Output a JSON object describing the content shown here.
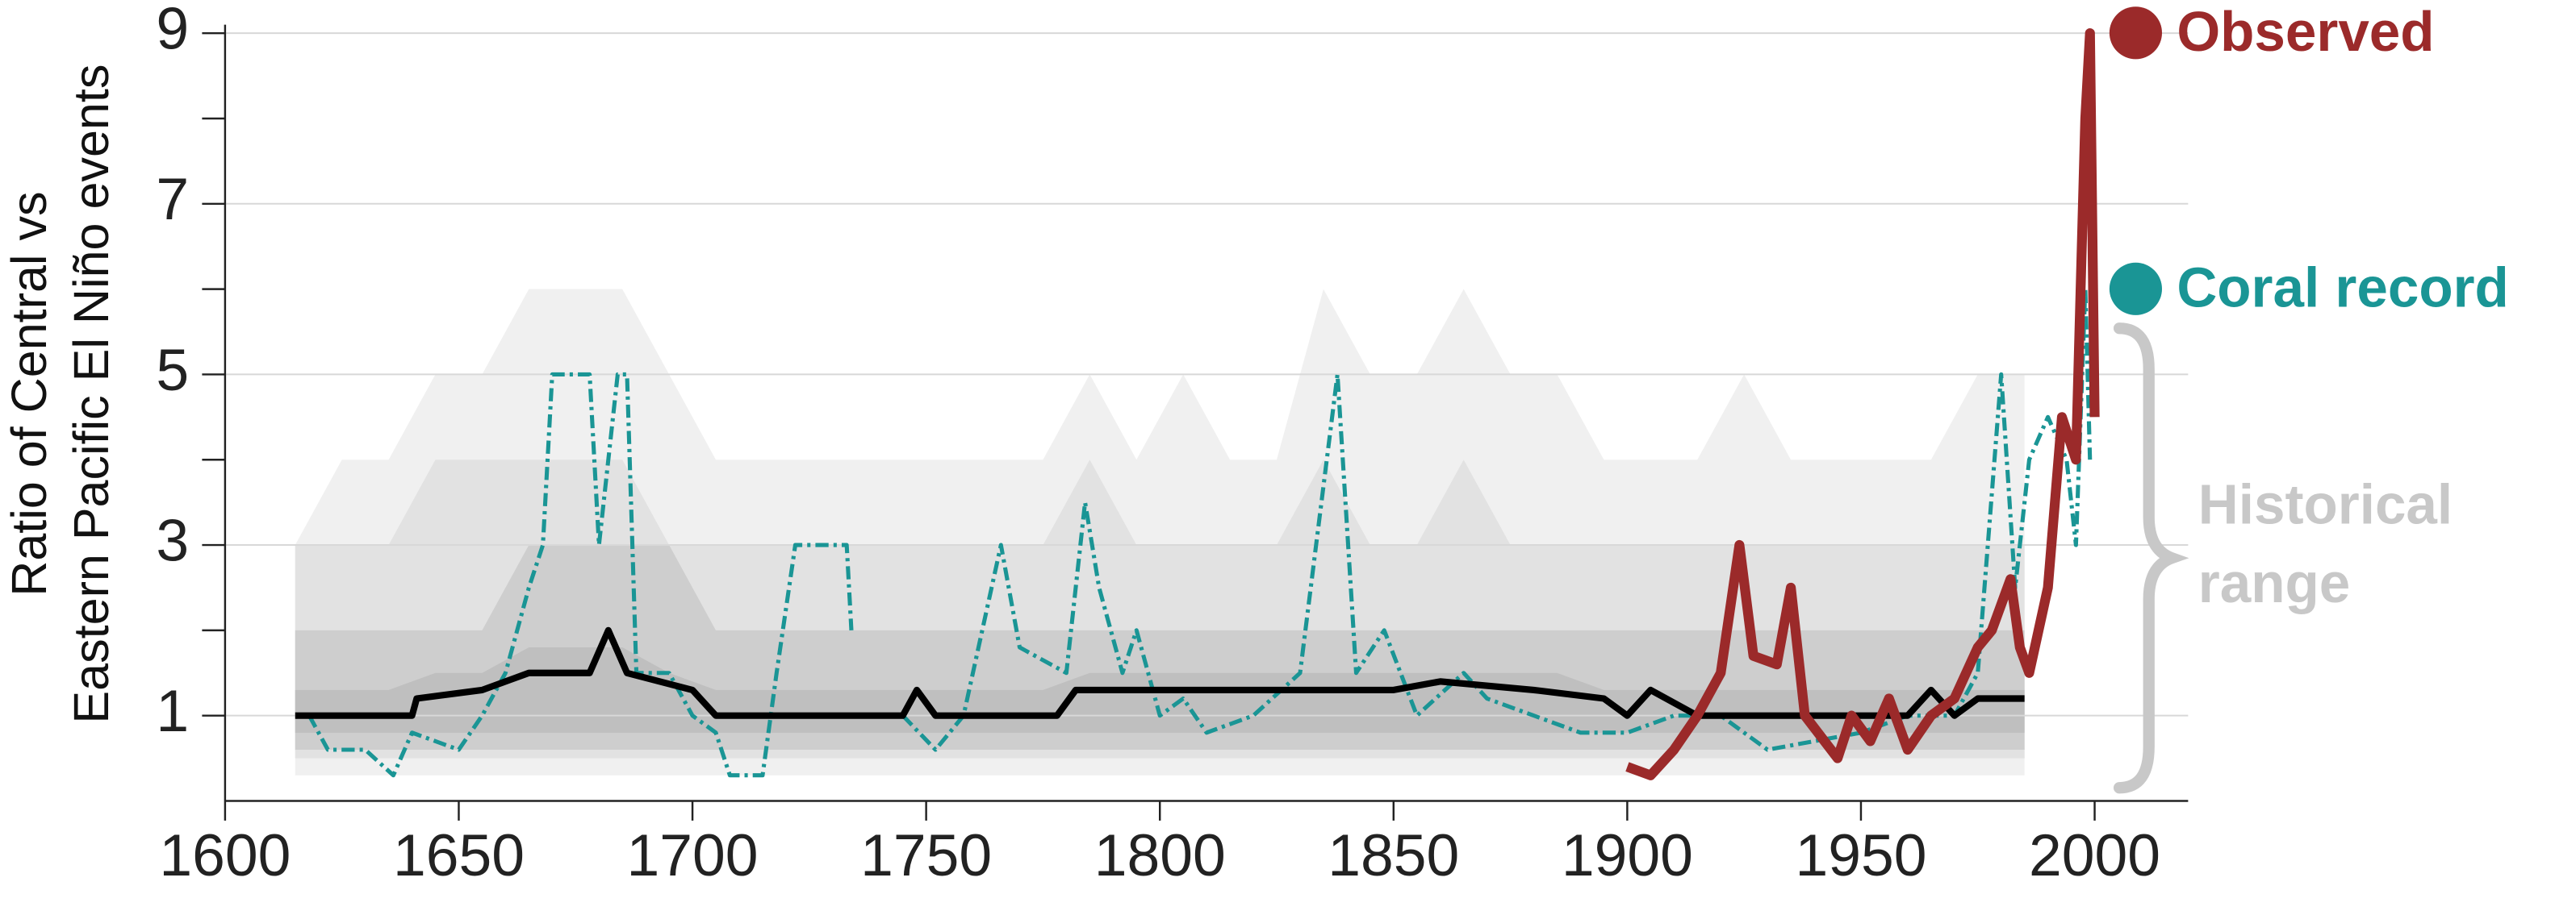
{
  "chart_data": {
    "type": "line",
    "ylabel": [
      "Ratio of Central vs",
      "Eastern Pacific El Niño events"
    ],
    "annotation": [
      "Historical",
      "range"
    ],
    "xlim": [
      1600,
      2020
    ],
    "xticks": [
      1600,
      1650,
      1700,
      1750,
      1800,
      1850,
      1900,
      1950,
      2000
    ],
    "ylim": [
      0,
      9.1
    ],
    "yticks": [
      1,
      3,
      5,
      7,
      9
    ],
    "yminorticks": [
      2,
      4,
      6,
      8
    ],
    "grid": true,
    "bands": {
      "x": [
        1615,
        1625,
        1635,
        1645,
        1655,
        1665,
        1675,
        1685,
        1695,
        1705,
        1715,
        1725,
        1735,
        1745,
        1755,
        1765,
        1775,
        1785,
        1795,
        1805,
        1815,
        1825,
        1835,
        1845,
        1855,
        1865,
        1875,
        1885,
        1895,
        1905,
        1915,
        1925,
        1935,
        1945,
        1955,
        1965,
        1975,
        1985
      ],
      "levels": [
        {
          "color": "#f0f0f0",
          "upper": [
            3,
            4,
            4,
            5,
            5,
            6,
            6,
            6,
            5,
            4,
            4,
            4,
            4,
            4,
            4,
            4,
            4,
            5,
            4,
            5,
            4,
            4,
            6,
            5,
            5,
            6,
            5,
            5,
            4,
            4,
            4,
            5,
            4,
            4,
            4,
            4,
            5,
            5
          ],
          "lower": [
            0.3,
            0.3,
            0.3,
            0.3,
            0.3,
            0.3,
            0.3,
            0.3,
            0.3,
            0.3,
            0.3,
            0.3,
            0.3,
            0.3,
            0.3,
            0.3,
            0.3,
            0.3,
            0.3,
            0.3,
            0.3,
            0.3,
            0.3,
            0.3,
            0.3,
            0.3,
            0.3,
            0.3,
            0.3,
            0.3,
            0.3,
            0.3,
            0.3,
            0.3,
            0.3,
            0.3,
            0.3,
            0.3
          ]
        },
        {
          "color": "#e2e2e2",
          "upper": [
            3,
            3,
            3,
            4,
            4,
            4,
            4,
            4,
            3,
            3,
            3,
            3,
            3,
            3,
            3,
            3,
            3,
            4,
            3,
            3,
            3,
            3,
            4,
            3,
            3,
            4,
            3,
            3,
            3,
            3,
            3,
            3,
            3,
            3,
            3,
            3,
            3,
            3
          ],
          "lower": [
            0.5,
            0.5,
            0.5,
            0.5,
            0.5,
            0.5,
            0.5,
            0.5,
            0.5,
            0.5,
            0.5,
            0.5,
            0.5,
            0.5,
            0.5,
            0.5,
            0.5,
            0.5,
            0.5,
            0.5,
            0.5,
            0.5,
            0.5,
            0.5,
            0.5,
            0.5,
            0.5,
            0.5,
            0.5,
            0.5,
            0.5,
            0.5,
            0.5,
            0.5,
            0.5,
            0.5,
            0.5,
            0.5
          ]
        },
        {
          "color": "#cecece",
          "upper": [
            2,
            2,
            2,
            2,
            2,
            3,
            3,
            3,
            3,
            2,
            2,
            2,
            2,
            2,
            2,
            2,
            2,
            2,
            2,
            2,
            2,
            2,
            2,
            2,
            2,
            2,
            2,
            2,
            2,
            2,
            2,
            2,
            2,
            2,
            2,
            2,
            2,
            2
          ],
          "lower": [
            0.6,
            0.6,
            0.6,
            0.6,
            0.6,
            0.6,
            0.6,
            0.6,
            0.6,
            0.6,
            0.6,
            0.6,
            0.6,
            0.6,
            0.6,
            0.6,
            0.6,
            0.6,
            0.6,
            0.6,
            0.6,
            0.6,
            0.6,
            0.6,
            0.6,
            0.6,
            0.6,
            0.6,
            0.6,
            0.6,
            0.6,
            0.6,
            0.6,
            0.6,
            0.6,
            0.6,
            0.6,
            0.6
          ]
        },
        {
          "color": "#bfbfbf",
          "upper": [
            1.3,
            1.3,
            1.3,
            1.5,
            1.5,
            1.8,
            1.8,
            1.8,
            1.5,
            1.3,
            1.3,
            1.3,
            1.3,
            1.3,
            1.3,
            1.3,
            1.3,
            1.5,
            1.5,
            1.5,
            1.5,
            1.5,
            1.5,
            1.5,
            1.5,
            1.5,
            1.5,
            1.5,
            1.3,
            1.3,
            1.3,
            1.3,
            1.3,
            1.3,
            1.3,
            1.3,
            1.3,
            1.3
          ],
          "lower": [
            0.8,
            0.8,
            0.8,
            0.8,
            0.8,
            0.8,
            0.8,
            0.8,
            0.8,
            0.8,
            0.8,
            0.8,
            0.8,
            0.8,
            0.8,
            0.8,
            0.8,
            0.8,
            0.8,
            0.8,
            0.8,
            0.8,
            0.8,
            0.8,
            0.8,
            0.8,
            0.8,
            0.8,
            0.8,
            0.8,
            0.8,
            0.8,
            0.8,
            0.8,
            0.8,
            0.8,
            0.8,
            0.8
          ]
        }
      ]
    },
    "series": [
      {
        "color": "#000000",
        "width": 4,
        "dash": "none",
        "x": [
          1615,
          1640,
          1641,
          1655,
          1665,
          1678,
          1682,
          1686,
          1700,
          1705,
          1745,
          1748,
          1752,
          1778,
          1782,
          1850,
          1860,
          1880,
          1895,
          1900,
          1905,
          1915,
          1960,
          1965,
          1970,
          1975,
          1985
        ],
        "values": [
          1.0,
          1.0,
          1.2,
          1.3,
          1.5,
          1.5,
          2.0,
          1.5,
          1.3,
          1.0,
          1.0,
          1.3,
          1.0,
          1.0,
          1.3,
          1.3,
          1.4,
          1.3,
          1.2,
          1.0,
          1.3,
          1.0,
          1.0,
          1.3,
          1.0,
          1.2,
          1.2
        ]
      },
      {
        "name": "Observed",
        "color": "#9b2a2a",
        "width": 6,
        "dash": "none",
        "x": [
          1900,
          1905,
          1910,
          1915,
          1920,
          1924,
          1927,
          1932,
          1935,
          1938,
          1945,
          1948,
          1952,
          1956,
          1960,
          1965,
          1970,
          1975,
          1978,
          1982,
          1984,
          1986,
          1990,
          1993,
          1996,
          1998,
          1999,
          2000
        ],
        "values": [
          0.4,
          0.3,
          0.6,
          1.0,
          1.5,
          3.0,
          1.7,
          1.6,
          2.5,
          1.0,
          0.5,
          1.0,
          0.7,
          1.2,
          0.6,
          1.0,
          1.2,
          1.8,
          2.0,
          2.6,
          1.8,
          1.5,
          2.5,
          4.5,
          4.0,
          8.0,
          9.0,
          4.5
        ]
      },
      {
        "name": "Coral record",
        "color": "#1a9595",
        "width": 2.5,
        "dash": "8 3 2 3",
        "x": [
          1618,
          1622,
          1630,
          1636,
          1640,
          1650,
          1655,
          1660,
          1665,
          1668,
          1670,
          1678,
          1680,
          1684,
          1686,
          1688,
          1695,
          1700,
          1705,
          1708,
          1715,
          1718,
          1722,
          1733,
          1734,
          1740,
          1745,
          1752,
          1758,
          1762,
          1766,
          1770,
          1780,
          1784,
          1787,
          1792,
          1795,
          1800,
          1805,
          1810,
          1820,
          1830,
          1838,
          1842,
          1848,
          1855,
          1865,
          1870,
          1880,
          1890,
          1900,
          1910,
          1920,
          1930,
          1940,
          1950,
          1960,
          1970,
          1975,
          1980,
          1983,
          1986,
          1990,
          1994,
          1996,
          1998,
          1999
        ],
        "values": [
          1.0,
          0.6,
          0.6,
          0.3,
          0.8,
          0.6,
          1.0,
          1.5,
          2.5,
          3.0,
          5.0,
          5.0,
          3.0,
          5.0,
          5.0,
          1.5,
          1.5,
          1.0,
          0.8,
          0.3,
          0.3,
          1.5,
          3.0,
          3.0,
          2.0,
          null,
          1.0,
          0.6,
          1.0,
          2.0,
          3.0,
          1.8,
          1.5,
          3.5,
          2.5,
          1.5,
          2.0,
          1.0,
          1.2,
          0.8,
          1.0,
          1.5,
          5.0,
          1.5,
          2.0,
          1.0,
          1.5,
          1.2,
          1.0,
          0.8,
          0.8,
          1.0,
          1.0,
          0.6,
          0.7,
          0.8,
          1.0,
          1.0,
          1.5,
          5.0,
          2.5,
          4.0,
          4.5,
          4.0,
          3.0,
          6.0,
          4.0
        ]
      }
    ]
  }
}
